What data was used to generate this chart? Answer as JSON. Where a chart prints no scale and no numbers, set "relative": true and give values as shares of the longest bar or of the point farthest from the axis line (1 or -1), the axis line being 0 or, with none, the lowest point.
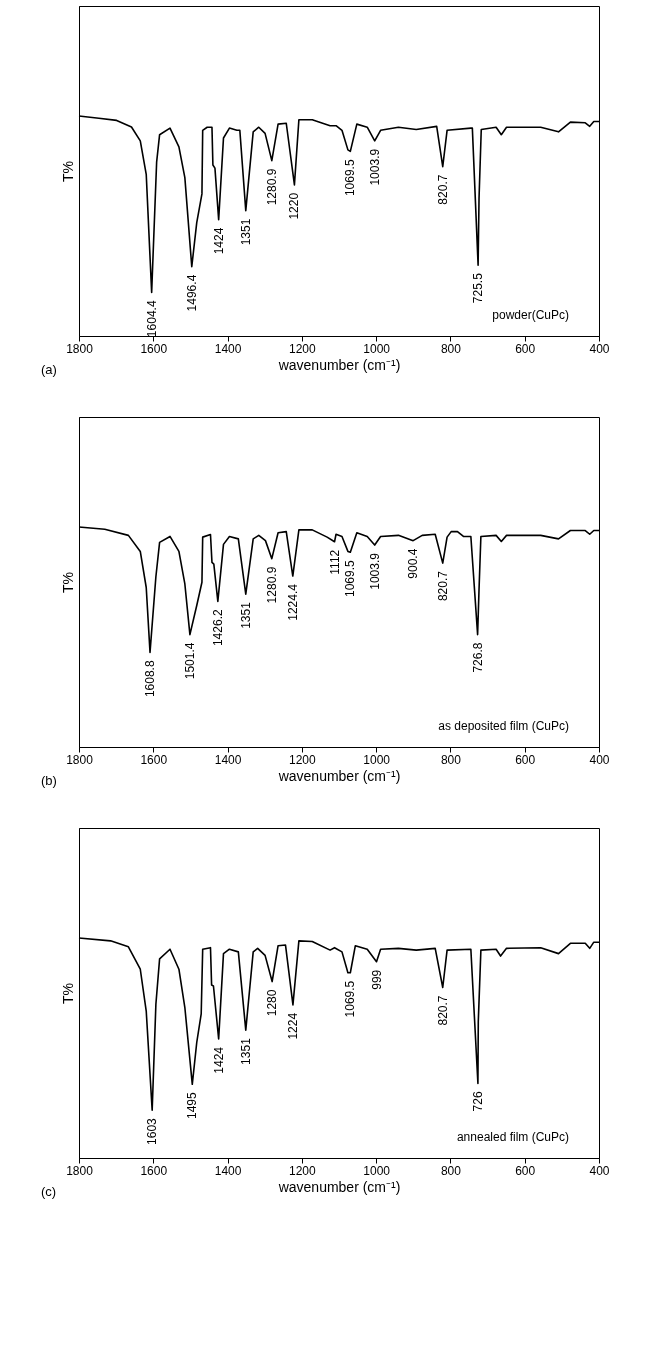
{
  "chart_data": [
    {
      "type": "line",
      "relative": true,
      "xlabel": "wavenumber (cm⁻¹)",
      "ylabel": "T%",
      "xlim": [
        1800,
        400
      ],
      "xticks": [
        1800,
        1600,
        1400,
        1200,
        1000,
        800,
        600,
        400
      ],
      "grid": false,
      "series": [
        {
          "color": "#000000",
          "x": [
            1800,
            1746.5,
            1698.6,
            1658.7,
            1635,
            1619,
            1604.4,
            1591,
            1583,
            1555,
            1531,
            1515,
            1496.4,
            1483,
            1469,
            1467,
            1455,
            1442,
            1439.5,
            1434,
            1424,
            1411,
            1395,
            1375,
            1367,
            1351,
            1331,
            1316,
            1299,
            1280.9,
            1264,
            1242,
            1220,
            1208,
            1172,
            1124,
            1108,
            1092,
            1076,
            1069.5,
            1052,
            1024,
            1003.9,
            988,
            940,
            892,
            837,
            820.7,
            809,
            745,
            741,
            725.5,
            723,
            717,
            677,
            663,
            649,
            557,
            509,
            477,
            437,
            425,
            414,
            400
          ],
          "values": [
            1.0,
            0.99,
            0.98,
            0.95,
            0.887,
            0.735,
            0.198,
            0.79,
            0.915,
            0.945,
            0.86,
            0.72,
            0.315,
            0.515,
            0.646,
            0.935,
            0.949,
            0.949,
            0.777,
            0.763,
            0.529,
            0.9,
            0.945,
            0.935,
            0.935,
            0.57,
            0.928,
            0.949,
            0.921,
            0.797,
            0.963,
            0.967,
            0.687,
            0.983,
            0.983,
            0.956,
            0.956,
            0.935,
            0.846,
            0.839,
            0.963,
            0.949,
            0.887,
            0.935,
            0.949,
            0.939,
            0.953,
            0.77,
            0.935,
            0.945,
            0.945,
            0.322,
            0.625,
            0.939,
            0.949,
            0.915,
            0.949,
            0.949,
            0.928,
            0.972,
            0.969,
            0.953,
            0.975,
            0.975
          ]
        }
      ],
      "annotations": [
        "powder(CuPc)",
        "(a)",
        {
          "text": "1604.4",
          "x": 1604.4,
          "y": 0.198
        },
        {
          "text": "1496.4",
          "x": 1496.4,
          "y": 0.315
        },
        {
          "text": "1424",
          "x": 1424,
          "y": 0.529
        },
        {
          "text": "1351",
          "x": 1351,
          "y": 0.57
        },
        {
          "text": "1280.9",
          "x": 1280.9,
          "y": 0.797
        },
        {
          "text": "1220",
          "x": 1220,
          "y": 0.687
        },
        {
          "text": "1069.5",
          "x": 1069.5,
          "y": 0.839
        },
        {
          "text": "1003.9",
          "x": 1003.9,
          "y": 0.887
        },
        {
          "text": "820.7",
          "x": 820.7,
          "y": 0.77
        },
        {
          "text": "725.5",
          "x": 725.5,
          "y": 0.322
        }
      ]
    },
    {
      "type": "line",
      "relative": true,
      "xlabel": "wavenumber (cm⁻¹)",
      "ylabel": "T%",
      "xlim": [
        1800,
        400
      ],
      "xticks": [
        1800,
        1600,
        1400,
        1200,
        1000,
        800,
        600,
        400
      ],
      "grid": false,
      "series": [
        {
          "color": "#000000",
          "x": [
            1800,
            1730.6,
            1667,
            1635,
            1619,
            1608.8,
            1593,
            1583,
            1555,
            1531,
            1515,
            1501.4,
            1483,
            1469,
            1467,
            1446,
            1442,
            1437,
            1426.2,
            1411,
            1395,
            1371,
            1351,
            1331,
            1316,
            1298,
            1280.9,
            1264,
            1242,
            1224.4,
            1208,
            1172,
            1132,
            1112,
            1108,
            1092,
            1076,
            1069.5,
            1052,
            1024,
            1003.9,
            988,
            940,
            900.4,
            876,
            841,
            820.7,
            809,
            798,
            781,
            765,
            745,
            726.8,
            723,
            718,
            677,
            663,
            649,
            557,
            509,
            477,
            437,
            425,
            414,
            400
          ],
          "values": [
            1.0,
            0.99,
            0.962,
            0.889,
            0.725,
            0.43,
            0.774,
            0.93,
            0.957,
            0.889,
            0.741,
            0.511,
            0.643,
            0.749,
            0.954,
            0.966,
            0.839,
            0.831,
            0.662,
            0.921,
            0.957,
            0.946,
            0.695,
            0.946,
            0.962,
            0.938,
            0.856,
            0.974,
            0.979,
            0.777,
            0.987,
            0.987,
            0.954,
            0.933,
            0.967,
            0.957,
            0.889,
            0.885,
            0.974,
            0.957,
            0.918,
            0.957,
            0.962,
            0.938,
            0.962,
            0.967,
            0.836,
            0.954,
            0.979,
            0.979,
            0.957,
            0.957,
            0.511,
            0.716,
            0.957,
            0.962,
            0.934,
            0.962,
            0.962,
            0.946,
            0.984,
            0.984,
            0.967,
            0.984,
            0.984
          ]
        }
      ],
      "annotations": [
        "as deposited film (CuPc)",
        "(b)",
        {
          "text": "1608.8",
          "x": 1608.8,
          "y": 0.43
        },
        {
          "text": "1501.4",
          "x": 1501.4,
          "y": 0.511
        },
        {
          "text": "1426.2",
          "x": 1426.2,
          "y": 0.662
        },
        {
          "text": "1351",
          "x": 1351,
          "y": 0.695
        },
        {
          "text": "1280.9",
          "x": 1280.9,
          "y": 0.856
        },
        {
          "text": "1224.4",
          "x": 1224.4,
          "y": 0.777
        },
        {
          "text": "1112",
          "x": 1112,
          "y": 0.933
        },
        {
          "text": "1069.5",
          "x": 1069.5,
          "y": 0.885
        },
        {
          "text": "1003.9",
          "x": 1003.9,
          "y": 0.918
        },
        {
          "text": "900.4",
          "x": 900.4,
          "y": 0.938
        },
        {
          "text": "820.7",
          "x": 820.7,
          "y": 0.836
        },
        {
          "text": "726.8",
          "x": 726.8,
          "y": 0.511
        }
      ]
    },
    {
      "type": "line",
      "relative": true,
      "xlabel": "wavenumber (cm⁻¹)",
      "ylabel": "T%",
      "xlim": [
        1800,
        400
      ],
      "xticks": [
        1800,
        1600,
        1400,
        1200,
        1000,
        800,
        600,
        400
      ],
      "grid": false,
      "series": [
        {
          "color": "#000000",
          "x": [
            1800,
            1715,
            1667,
            1635,
            1619,
            1603,
            1593,
            1583,
            1555,
            1531,
            1515,
            1495,
            1483,
            1471,
            1467,
            1446,
            1443,
            1438,
            1424,
            1411,
            1395,
            1371,
            1351,
            1331,
            1319,
            1299,
            1280,
            1264,
            1244,
            1224,
            1208,
            1172,
            1124,
            1112,
            1092,
            1076,
            1069.5,
            1056,
            1024,
            999,
            988,
            940,
            892,
            841,
            820.7,
            809,
            745,
            726,
            725,
            718,
            677,
            665,
            649,
            557,
            509,
            477,
            437,
            425,
            414,
            400
          ],
          "values": [
            1.0,
            0.987,
            0.96,
            0.858,
            0.668,
            0.217,
            0.699,
            0.905,
            0.949,
            0.858,
            0.684,
            0.335,
            0.525,
            0.655,
            0.949,
            0.956,
            0.786,
            0.782,
            0.541,
            0.929,
            0.949,
            0.937,
            0.581,
            0.937,
            0.953,
            0.921,
            0.802,
            0.965,
            0.968,
            0.696,
            0.987,
            0.984,
            0.945,
            0.956,
            0.937,
            0.842,
            0.842,
            0.965,
            0.949,
            0.892,
            0.949,
            0.953,
            0.945,
            0.953,
            0.775,
            0.945,
            0.949,
            0.339,
            0.62,
            0.945,
            0.949,
            0.918,
            0.953,
            0.956,
            0.929,
            0.976,
            0.976,
            0.953,
            0.981,
            0.981
          ]
        }
      ],
      "annotations": [
        "annealed film (CuPc)",
        "(c)",
        {
          "text": "1603",
          "x": 1603,
          "y": 0.217
        },
        {
          "text": "1495",
          "x": 1495,
          "y": 0.335
        },
        {
          "text": "1424",
          "x": 1424,
          "y": 0.541
        },
        {
          "text": "1351",
          "x": 1351,
          "y": 0.581
        },
        {
          "text": "1280",
          "x": 1280,
          "y": 0.802
        },
        {
          "text": "1224",
          "x": 1224,
          "y": 0.696
        },
        {
          "text": "1069.5",
          "x": 1069.5,
          "y": 0.842
        },
        {
          "text": "999",
          "x": 999,
          "y": 0.892
        },
        {
          "text": "820.7",
          "x": 820.7,
          "y": 0.775
        },
        {
          "text": "726",
          "x": 726,
          "y": 0.339
        }
      ]
    }
  ]
}
